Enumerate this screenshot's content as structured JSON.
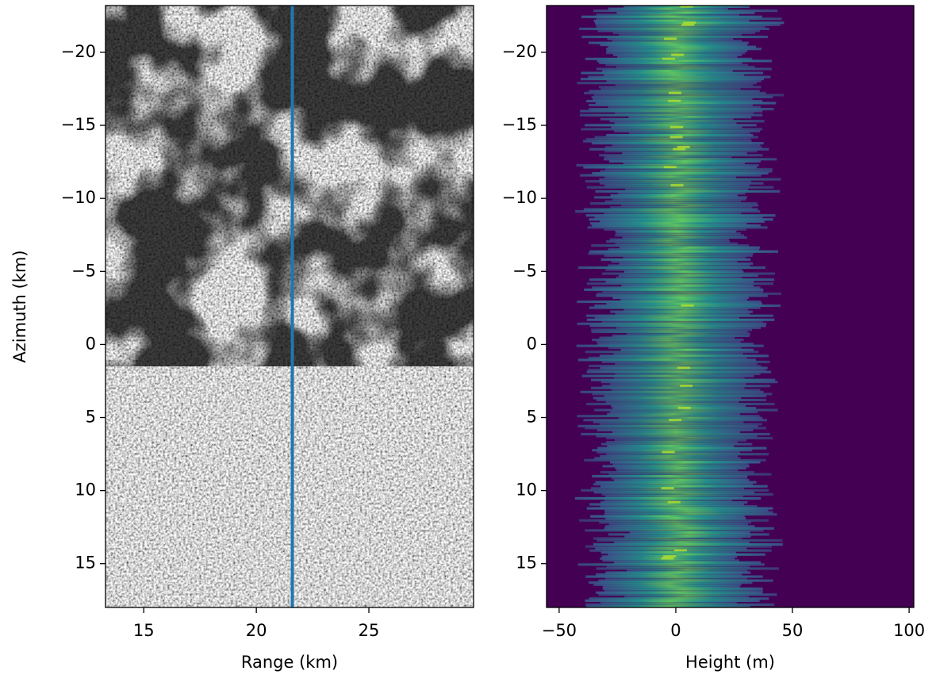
{
  "chart_data": [
    {
      "type": "image",
      "xlabel": "Range (km)",
      "ylabel": "Azimuth (km)",
      "xlim": [
        13.3,
        29.65
      ],
      "ylim": [
        -23.2,
        18.0
      ],
      "invert_y": true,
      "xticks": [
        15,
        20,
        25
      ],
      "yticks": [
        {
          "value": -20,
          "label": "−20"
        },
        {
          "value": -15,
          "label": "−15"
        },
        {
          "value": -10,
          "label": "−10"
        },
        {
          "value": -5,
          "label": "−5"
        },
        0,
        5,
        10,
        15
      ],
      "vline": {
        "x": 21.6,
        "color": "#1f77b4"
      }
    },
    {
      "type": "heatmap",
      "xlabel": "Height (m)",
      "xlim": [
        -55.4,
        102.0
      ],
      "ylim": [
        -23.2,
        18.0
      ],
      "invert_y": true,
      "xticks": [
        {
          "value": -50,
          "label": "−50"
        },
        0,
        50,
        100
      ],
      "yticks": [
        {
          "value": -20,
          "label": "−20"
        },
        {
          "value": -15,
          "label": "−15"
        },
        {
          "value": -10,
          "label": "−10"
        },
        {
          "value": -5,
          "label": "−5"
        },
        0,
        5,
        10,
        15
      ]
    }
  ]
}
